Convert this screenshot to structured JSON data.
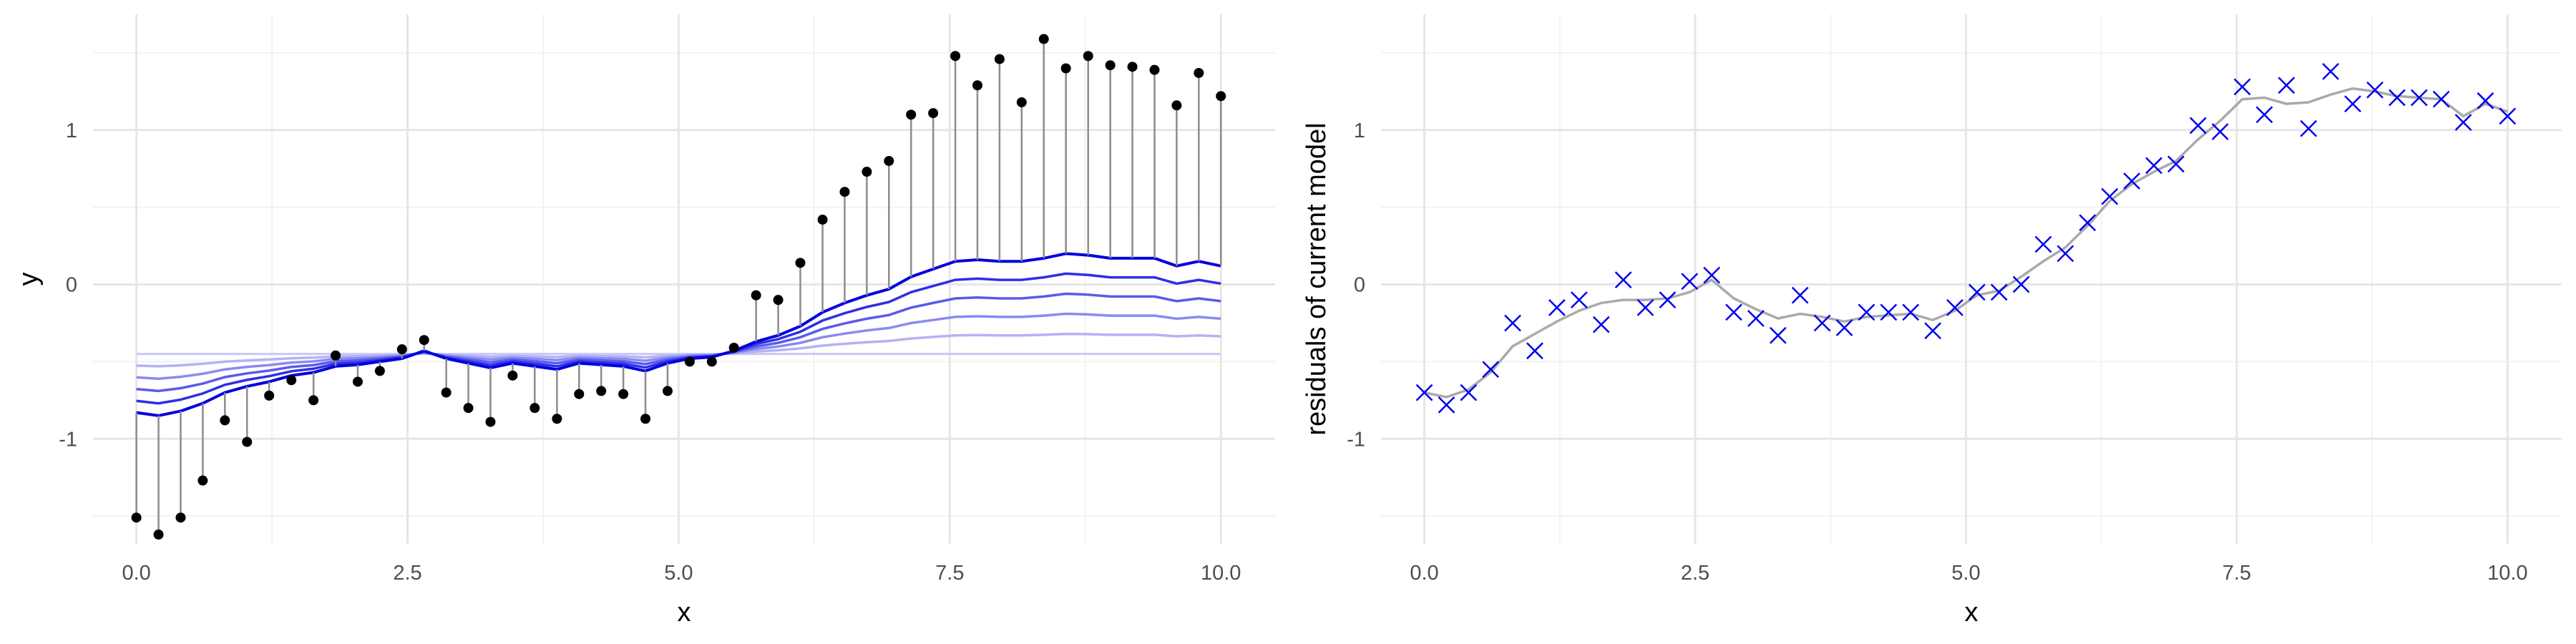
{
  "chart_data": [
    {
      "type": "line",
      "panel": "left",
      "xlabel": "x",
      "ylabel": "y",
      "xlim": [
        -0.4,
        10.5
      ],
      "ylim": [
        -1.68,
        1.75
      ],
      "x_ticks": [
        0,
        2.5,
        5,
        7.5,
        10
      ],
      "x_tick_labels": [
        "0.0",
        "2.5",
        "5.0",
        "7.5",
        "10.0"
      ],
      "y_ticks": [
        -1,
        0,
        1
      ],
      "y_tick_labels": [
        "-1",
        "0",
        "1"
      ],
      "grid": true,
      "points_x": [
        0,
        0.204,
        0.408,
        0.612,
        0.816,
        1.02,
        1.224,
        1.429,
        1.633,
        1.837,
        2.041,
        2.245,
        2.449,
        2.653,
        2.857,
        3.061,
        3.265,
        3.469,
        3.673,
        3.878,
        4.082,
        4.286,
        4.49,
        4.694,
        4.898,
        5.102,
        5.306,
        5.51,
        5.714,
        5.918,
        6.122,
        6.327,
        6.531,
        6.735,
        6.939,
        7.143,
        7.347,
        7.551,
        7.755,
        7.959,
        8.163,
        8.367,
        8.571,
        8.776,
        8.98,
        9.184,
        9.388,
        9.592,
        9.796,
        10
      ],
      "points_y": [
        -1.51,
        -1.62,
        -1.51,
        -1.27,
        -0.88,
        -1.02,
        -0.72,
        -0.62,
        -0.75,
        -0.46,
        -0.63,
        -0.56,
        -0.42,
        -0.36,
        -0.7,
        -0.8,
        -0.89,
        -0.59,
        -0.8,
        -0.87,
        -0.71,
        -0.69,
        -0.71,
        -0.87,
        -0.69,
        -0.5,
        -0.5,
        -0.41,
        -0.07,
        -0.1,
        0.14,
        0.42,
        0.6,
        0.73,
        0.8,
        1.1,
        1.11,
        1.48,
        1.29,
        1.46,
        1.18,
        1.59,
        1.4,
        1.48,
        1.42,
        1.41,
        1.39,
        1.16,
        1.37,
        1.22
      ],
      "baseline": -0.45,
      "fit_x": [
        0,
        0.204,
        0.408,
        0.612,
        0.816,
        1.02,
        1.224,
        1.429,
        1.633,
        1.837,
        2.041,
        2.245,
        2.449,
        2.653,
        2.857,
        3.061,
        3.265,
        3.469,
        3.673,
        3.878,
        4.082,
        4.286,
        4.49,
        4.694,
        4.898,
        5.102,
        5.306,
        5.51,
        5.714,
        5.918,
        6.122,
        6.327,
        6.531,
        6.735,
        6.939,
        7.143,
        7.347,
        7.551,
        7.755,
        7.959,
        8.163,
        8.367,
        8.571,
        8.776,
        8.98,
        9.184,
        9.388,
        9.592,
        9.796,
        10
      ],
      "fit_shape": [
        -0.38,
        -0.4,
        -0.37,
        -0.32,
        -0.25,
        -0.21,
        -0.18,
        -0.14,
        -0.12,
        -0.08,
        -0.07,
        -0.05,
        -0.03,
        0.02,
        -0.03,
        -0.06,
        -0.09,
        -0.06,
        -0.08,
        -0.1,
        -0.06,
        -0.07,
        -0.08,
        -0.11,
        -0.06,
        -0.03,
        -0.02,
        0.02,
        0.08,
        0.12,
        0.18,
        0.27,
        0.33,
        0.38,
        0.42,
        0.5,
        0.55,
        0.6,
        0.61,
        0.6,
        0.6,
        0.62,
        0.65,
        0.64,
        0.62,
        0.62,
        0.62,
        0.57,
        0.6,
        0.57
      ],
      "series": [
        {
          "level": 0.2,
          "color": "#b3b3f5"
        },
        {
          "level": 0.4,
          "color": "#8a8af0"
        },
        {
          "level": 0.6,
          "color": "#5a5aeb"
        },
        {
          "level": 0.8,
          "color": "#2e2ee6"
        },
        {
          "level": 1.0,
          "color": "#0000e0"
        }
      ]
    },
    {
      "type": "scatter",
      "panel": "right",
      "xlabel": "x",
      "ylabel": "residuals of current model",
      "xlim": [
        -0.4,
        10.5
      ],
      "ylim": [
        -1.68,
        1.75
      ],
      "x_ticks": [
        0,
        2.5,
        5,
        7.5,
        10
      ],
      "x_tick_labels": [
        "0.0",
        "2.5",
        "5.0",
        "7.5",
        "10.0"
      ],
      "y_ticks": [
        -1,
        0,
        1
      ],
      "y_tick_labels": [
        "-1",
        "0",
        "1"
      ],
      "grid": true,
      "x": [
        0,
        0.204,
        0.408,
        0.612,
        0.816,
        1.02,
        1.224,
        1.429,
        1.633,
        1.837,
        2.041,
        2.245,
        2.449,
        2.653,
        2.857,
        3.061,
        3.265,
        3.469,
        3.673,
        3.878,
        4.082,
        4.286,
        4.49,
        4.694,
        4.898,
        5.102,
        5.306,
        5.51,
        5.714,
        5.918,
        6.122,
        6.327,
        6.531,
        6.735,
        6.939,
        7.143,
        7.347,
        7.551,
        7.755,
        7.959,
        8.163,
        8.367,
        8.571,
        8.776,
        8.98,
        9.184,
        9.388,
        9.592,
        9.796,
        10
      ],
      "residuals": [
        -0.7,
        -0.78,
        -0.7,
        -0.55,
        -0.25,
        -0.43,
        -0.15,
        -0.1,
        -0.26,
        0.03,
        -0.15,
        -0.1,
        0.02,
        0.06,
        -0.18,
        -0.22,
        -0.33,
        -0.07,
        -0.25,
        -0.28,
        -0.18,
        -0.18,
        -0.18,
        -0.3,
        -0.15,
        -0.05,
        -0.05,
        0.0,
        0.26,
        0.2,
        0.4,
        0.57,
        0.67,
        0.77,
        0.78,
        1.03,
        0.99,
        1.28,
        1.1,
        1.29,
        1.01,
        1.38,
        1.17,
        1.26,
        1.21,
        1.21,
        1.2,
        1.05,
        1.19,
        1.09
      ],
      "smooth": [
        -0.7,
        -0.73,
        -0.68,
        -0.57,
        -0.4,
        -0.32,
        -0.24,
        -0.17,
        -0.12,
        -0.1,
        -0.1,
        -0.09,
        -0.05,
        0.03,
        -0.09,
        -0.16,
        -0.22,
        -0.19,
        -0.21,
        -0.24,
        -0.21,
        -0.2,
        -0.19,
        -0.23,
        -0.17,
        -0.07,
        -0.04,
        0.05,
        0.15,
        0.24,
        0.38,
        0.54,
        0.65,
        0.73,
        0.8,
        0.94,
        1.06,
        1.2,
        1.21,
        1.17,
        1.18,
        1.23,
        1.27,
        1.25,
        1.22,
        1.21,
        1.2,
        1.09,
        1.17,
        1.12
      ],
      "marker_color": "#0000ee",
      "smooth_color": "#aaaaaa"
    }
  ]
}
